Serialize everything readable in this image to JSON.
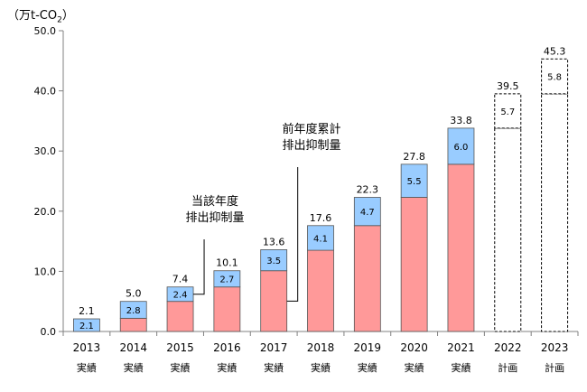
{
  "chart_data": {
    "type": "bar",
    "stacked": true,
    "unit_label": "（万t-CO",
    "unit_sub": "2",
    "unit_close": "）",
    "categories": [
      "2013",
      "2014",
      "2015",
      "2016",
      "2017",
      "2018",
      "2019",
      "2020",
      "2021",
      "2022",
      "2023"
    ],
    "category_sublabels": [
      "実績",
      "実績",
      "実績",
      "実績",
      "実績",
      "実績",
      "実績",
      "実績",
      "実績",
      "計画",
      "計画"
    ],
    "series": [
      {
        "key": "cumulative",
        "name": "前年度累計排出抑制量",
        "color": "#ff9999",
        "values": [
          0,
          2.2,
          5.0,
          7.4,
          10.1,
          13.5,
          17.6,
          22.3,
          27.8,
          33.8,
          39.5
        ]
      },
      {
        "key": "current",
        "name": "当該年度排出抑制量",
        "color": "#99ccff",
        "values": [
          2.1,
          2.8,
          2.4,
          2.7,
          3.5,
          4.1,
          4.7,
          5.5,
          6.0,
          5.7,
          5.8
        ]
      }
    ],
    "increment_labels": [
      "2.1",
      "2.8",
      "2.4",
      "2.7",
      "3.5",
      "4.1",
      "4.7",
      "5.5",
      "6.0",
      "5.7",
      "5.8"
    ],
    "totals": [
      "2.1",
      "5.0",
      "7.4",
      "10.1",
      "13.6",
      "17.6",
      "22.3",
      "27.8",
      "33.8",
      "39.5",
      "45.3"
    ],
    "planned": [
      false,
      false,
      false,
      false,
      false,
      false,
      false,
      false,
      false,
      true,
      true
    ],
    "ylim": [
      0,
      50
    ],
    "yticks": [
      "0.0",
      "10.0",
      "20.0",
      "30.0",
      "40.0",
      "50.0"
    ],
    "annotations": [
      {
        "lines": [
          "当該年度",
          "排出抑制量"
        ],
        "target": "current",
        "category": "2015"
      },
      {
        "lines": [
          "前年度累計",
          "排出抑制量"
        ],
        "target": "cumulative",
        "category": "2017"
      }
    ],
    "grid": false,
    "legend": "none"
  }
}
